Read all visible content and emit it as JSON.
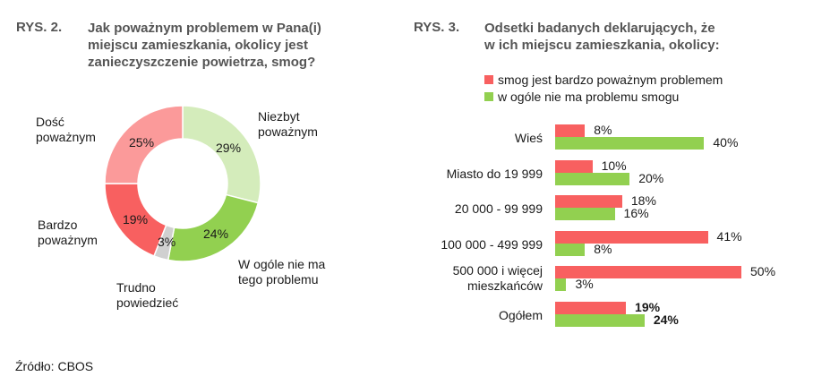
{
  "left_figure": {
    "label": "RYS. 2.",
    "title_lines": [
      "Jak poważnym problemem w Pana(i)",
      "miejscu zamieszkania, okolicy jest",
      "zanieczyszczenie powietrza, smog?"
    ]
  },
  "right_figure": {
    "label": "RYS. 3.",
    "title_lines": [
      "Odsetki badanych deklarujących, że",
      "w ich miejscu zamieszkania, okolicy:"
    ]
  },
  "source": "Źródło: CBOS",
  "colors": {
    "red": "#f86060",
    "light_red": "#fb9a9a",
    "green": "#92d050",
    "light_green": "#d4ecbb",
    "grey": "#d0d0d0"
  },
  "chart_data": [
    {
      "type": "pie",
      "donut": true,
      "title": "Jak poważnym problemem w Pana(i) miejscu zamieszkania, okolicy jest zanieczyszczenie powietrza, smog?",
      "slices": [
        {
          "label_lines": [
            "Niezbyt",
            "poważnym"
          ],
          "value": 29,
          "value_label": "29%"
        },
        {
          "label_lines": [
            "W ogóle nie ma",
            "tego problemu"
          ],
          "value": 24,
          "value_label": "24%"
        },
        {
          "label_lines": [
            "Trudno",
            "powiedzieć"
          ],
          "value": 3,
          "value_label": "3%"
        },
        {
          "label_lines": [
            "Bardzo",
            "poważnym"
          ],
          "value": 19,
          "value_label": "19%"
        },
        {
          "label_lines": [
            "Dość",
            "poważnym"
          ],
          "value": 25,
          "value_label": "25%"
        }
      ]
    },
    {
      "type": "bar",
      "orientation": "horizontal",
      "title": "Odsetki badanych deklarujących, że w ich miejscu zamieszkania, okolicy:",
      "categories": [
        {
          "lines": [
            "Wieś"
          ]
        },
        {
          "lines": [
            "Miasto do 19 999"
          ]
        },
        {
          "lines": [
            "20 000 - 99 999"
          ]
        },
        {
          "lines": [
            "100 000 - 499 999"
          ]
        },
        {
          "lines": [
            "500 000 i więcej",
            "mieszkańców"
          ]
        },
        {
          "lines": [
            "Ogółem"
          ]
        }
      ],
      "series": [
        {
          "name": "smog jest bardzo poważnym problemem",
          "values": [
            8,
            10,
            18,
            41,
            50,
            19
          ],
          "labels": [
            "8%",
            "10%",
            "18%",
            "41%",
            "50%",
            "19%"
          ]
        },
        {
          "name": "w ogóle nie ma problemu smogu",
          "values": [
            40,
            20,
            16,
            8,
            3,
            24
          ],
          "labels": [
            "40%",
            "20%",
            "16%",
            "8%",
            "3%",
            "24%"
          ]
        }
      ],
      "xlim": [
        0,
        50
      ]
    }
  ]
}
